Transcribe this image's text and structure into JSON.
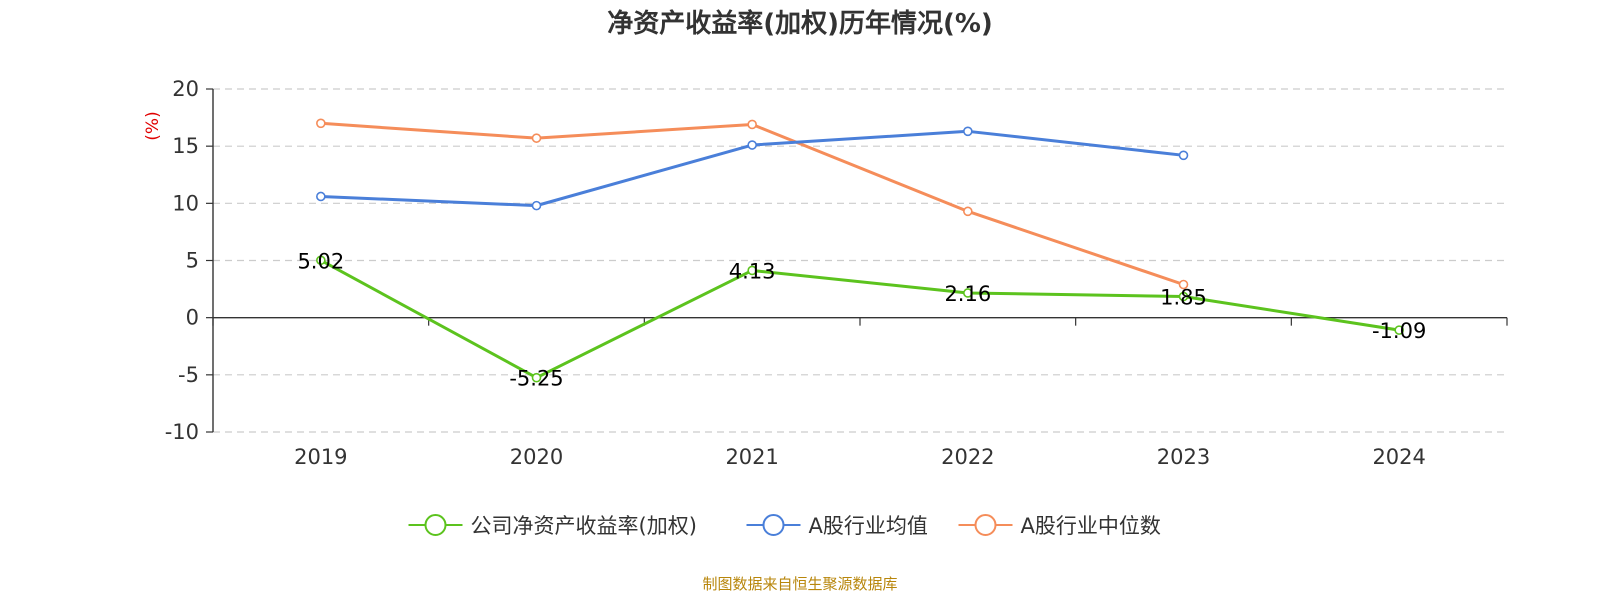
{
  "chart_data": {
    "type": "line",
    "title": "净资产收益率(加权)历年情况(%)",
    "ylabel": "(%)",
    "xlabel": "",
    "categories": [
      "2019",
      "2020",
      "2021",
      "2022",
      "2023",
      "2024"
    ],
    "ylim": [
      -10,
      20
    ],
    "yticks": [
      -10,
      -5,
      0,
      5,
      10,
      15,
      20
    ],
    "grid": true,
    "legend_position": "bottom-center",
    "series": [
      {
        "name": "公司净资产收益率(加权)",
        "color": "#5cc31e",
        "values": [
          5.02,
          -5.25,
          4.13,
          2.16,
          1.85,
          -1.09
        ],
        "labels": [
          "5.02",
          "-5.25",
          "4.13",
          "2.16",
          "1.85",
          "-1.09"
        ]
      },
      {
        "name": "A股行业均值",
        "color": "#4a7fd9",
        "values": [
          10.6,
          9.8,
          15.1,
          16.3,
          14.2,
          null
        ]
      },
      {
        "name": "A股行业中位数",
        "color": "#f58d5a",
        "values": [
          17.0,
          15.7,
          16.9,
          9.3,
          2.9,
          null
        ]
      }
    ]
  },
  "footer": {
    "source": "制图数据来自恒生聚源数据库"
  }
}
